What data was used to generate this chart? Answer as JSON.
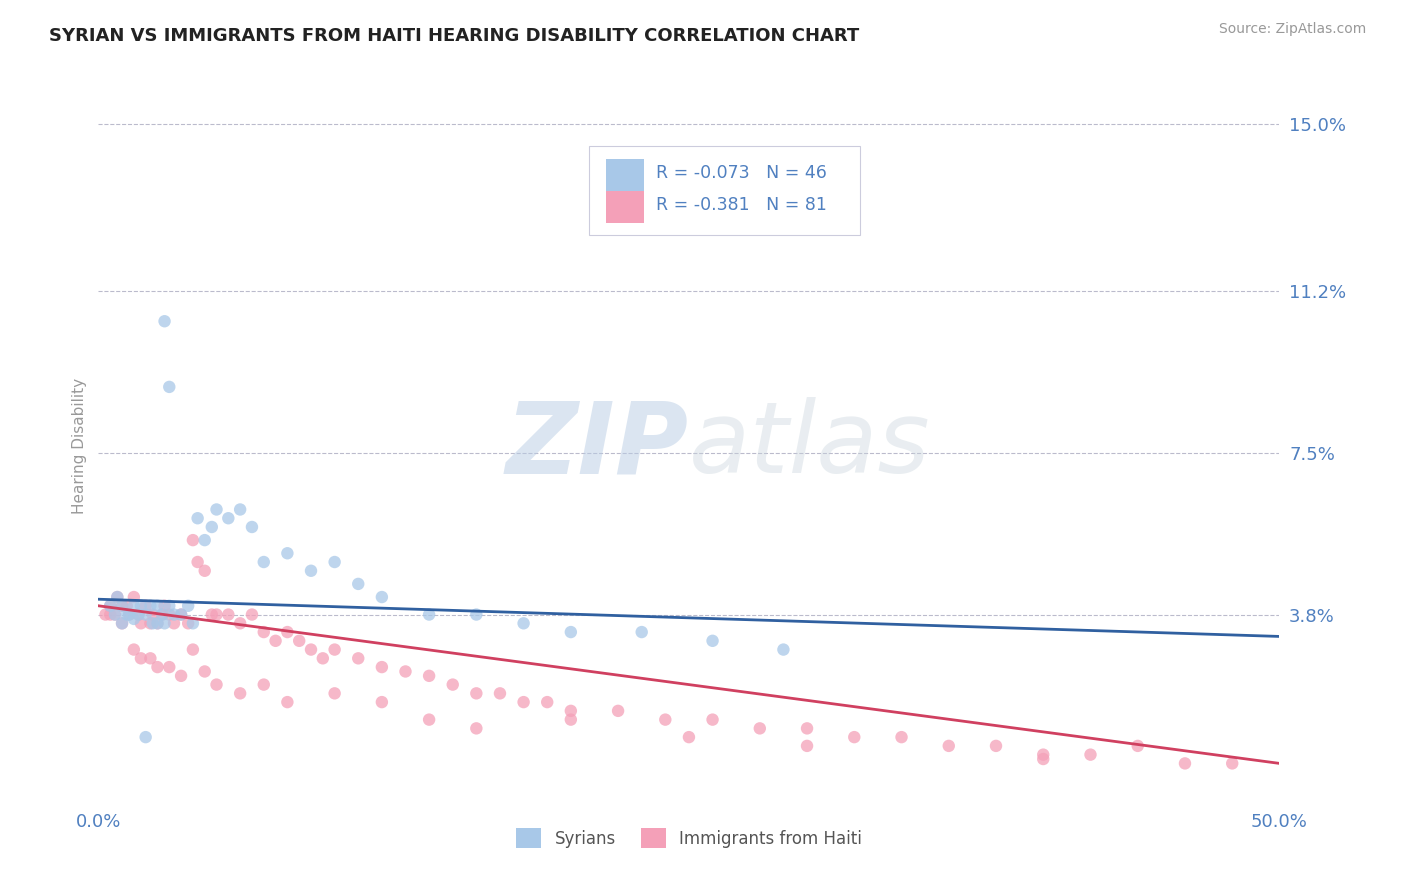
{
  "title": "SYRIAN VS IMMIGRANTS FROM HAITI HEARING DISABILITY CORRELATION CHART",
  "source": "Source: ZipAtlas.com",
  "ylabel": "Hearing Disability",
  "watermark_zip": "ZIP",
  "watermark_atlas": "atlas",
  "legend_syrian": "Syrians",
  "legend_haiti": "Immigrants from Haiti",
  "syrian_R": -0.073,
  "syrian_N": 46,
  "haiti_R": -0.381,
  "haiti_N": 81,
  "xmin": 0.0,
  "xmax": 0.5,
  "ymin": -0.005,
  "ymax": 0.158,
  "ytick_vals": [
    0.038,
    0.075,
    0.112,
    0.15
  ],
  "ytick_labels": [
    "3.8%",
    "7.5%",
    "11.2%",
    "15.0%"
  ],
  "xtick_vals": [
    0.0,
    0.5
  ],
  "xtick_labels": [
    "0.0%",
    "50.0%"
  ],
  "color_syrian": "#A8C8E8",
  "color_haiti": "#F4A0B8",
  "line_color_syrian": "#3060A0",
  "line_color_haiti": "#D04060",
  "background_color": "#FFFFFF",
  "title_color": "#222222",
  "tick_color": "#5080C0",
  "gridline_color": "#BBBBCC",
  "gridline_style": "--",
  "syrian_scatter_x": [
    0.005,
    0.007,
    0.008,
    0.01,
    0.01,
    0.012,
    0.013,
    0.015,
    0.015,
    0.017,
    0.018,
    0.02,
    0.022,
    0.023,
    0.025,
    0.025,
    0.027,
    0.028,
    0.03,
    0.032,
    0.035,
    0.038,
    0.04,
    0.042,
    0.045,
    0.048,
    0.05,
    0.055,
    0.06,
    0.065,
    0.07,
    0.08,
    0.09,
    0.1,
    0.11,
    0.12,
    0.14,
    0.16,
    0.18,
    0.2,
    0.23,
    0.26,
    0.29,
    0.028,
    0.03,
    0.02
  ],
  "syrian_scatter_y": [
    0.04,
    0.038,
    0.042,
    0.036,
    0.04,
    0.038,
    0.038,
    0.037,
    0.04,
    0.038,
    0.04,
    0.038,
    0.04,
    0.036,
    0.036,
    0.04,
    0.038,
    0.036,
    0.04,
    0.038,
    0.038,
    0.04,
    0.036,
    0.06,
    0.055,
    0.058,
    0.062,
    0.06,
    0.062,
    0.058,
    0.05,
    0.052,
    0.048,
    0.05,
    0.045,
    0.042,
    0.038,
    0.038,
    0.036,
    0.034,
    0.034,
    0.032,
    0.03,
    0.105,
    0.09,
    0.01
  ],
  "haiti_scatter_x": [
    0.003,
    0.005,
    0.007,
    0.008,
    0.01,
    0.01,
    0.012,
    0.013,
    0.015,
    0.017,
    0.018,
    0.02,
    0.022,
    0.023,
    0.025,
    0.027,
    0.028,
    0.03,
    0.032,
    0.035,
    0.038,
    0.04,
    0.042,
    0.045,
    0.048,
    0.05,
    0.055,
    0.06,
    0.065,
    0.07,
    0.075,
    0.08,
    0.085,
    0.09,
    0.095,
    0.1,
    0.11,
    0.12,
    0.13,
    0.14,
    0.15,
    0.16,
    0.17,
    0.18,
    0.19,
    0.2,
    0.22,
    0.24,
    0.26,
    0.28,
    0.3,
    0.32,
    0.34,
    0.36,
    0.38,
    0.4,
    0.42,
    0.44,
    0.46,
    0.48,
    0.015,
    0.018,
    0.022,
    0.025,
    0.03,
    0.035,
    0.04,
    0.045,
    0.05,
    0.06,
    0.07,
    0.08,
    0.1,
    0.12,
    0.14,
    0.16,
    0.2,
    0.25,
    0.3,
    0.4,
    0.005
  ],
  "haiti_scatter_y": [
    0.038,
    0.04,
    0.038,
    0.042,
    0.04,
    0.036,
    0.04,
    0.038,
    0.042,
    0.038,
    0.036,
    0.04,
    0.036,
    0.038,
    0.036,
    0.038,
    0.04,
    0.038,
    0.036,
    0.038,
    0.036,
    0.055,
    0.05,
    0.048,
    0.038,
    0.038,
    0.038,
    0.036,
    0.038,
    0.034,
    0.032,
    0.034,
    0.032,
    0.03,
    0.028,
    0.03,
    0.028,
    0.026,
    0.025,
    0.024,
    0.022,
    0.02,
    0.02,
    0.018,
    0.018,
    0.016,
    0.016,
    0.014,
    0.014,
    0.012,
    0.012,
    0.01,
    0.01,
    0.008,
    0.008,
    0.006,
    0.006,
    0.008,
    0.004,
    0.004,
    0.03,
    0.028,
    0.028,
    0.026,
    0.026,
    0.024,
    0.03,
    0.025,
    0.022,
    0.02,
    0.022,
    0.018,
    0.02,
    0.018,
    0.014,
    0.012,
    0.014,
    0.01,
    0.008,
    0.005,
    0.038
  ],
  "regression_syrian_x0": 0.0,
  "regression_syrian_y0": 0.0415,
  "regression_syrian_x1": 0.5,
  "regression_syrian_y1": 0.033,
  "regression_haiti_x0": 0.0,
  "regression_haiti_y0": 0.04,
  "regression_haiti_x1": 0.5,
  "regression_haiti_y1": 0.004
}
